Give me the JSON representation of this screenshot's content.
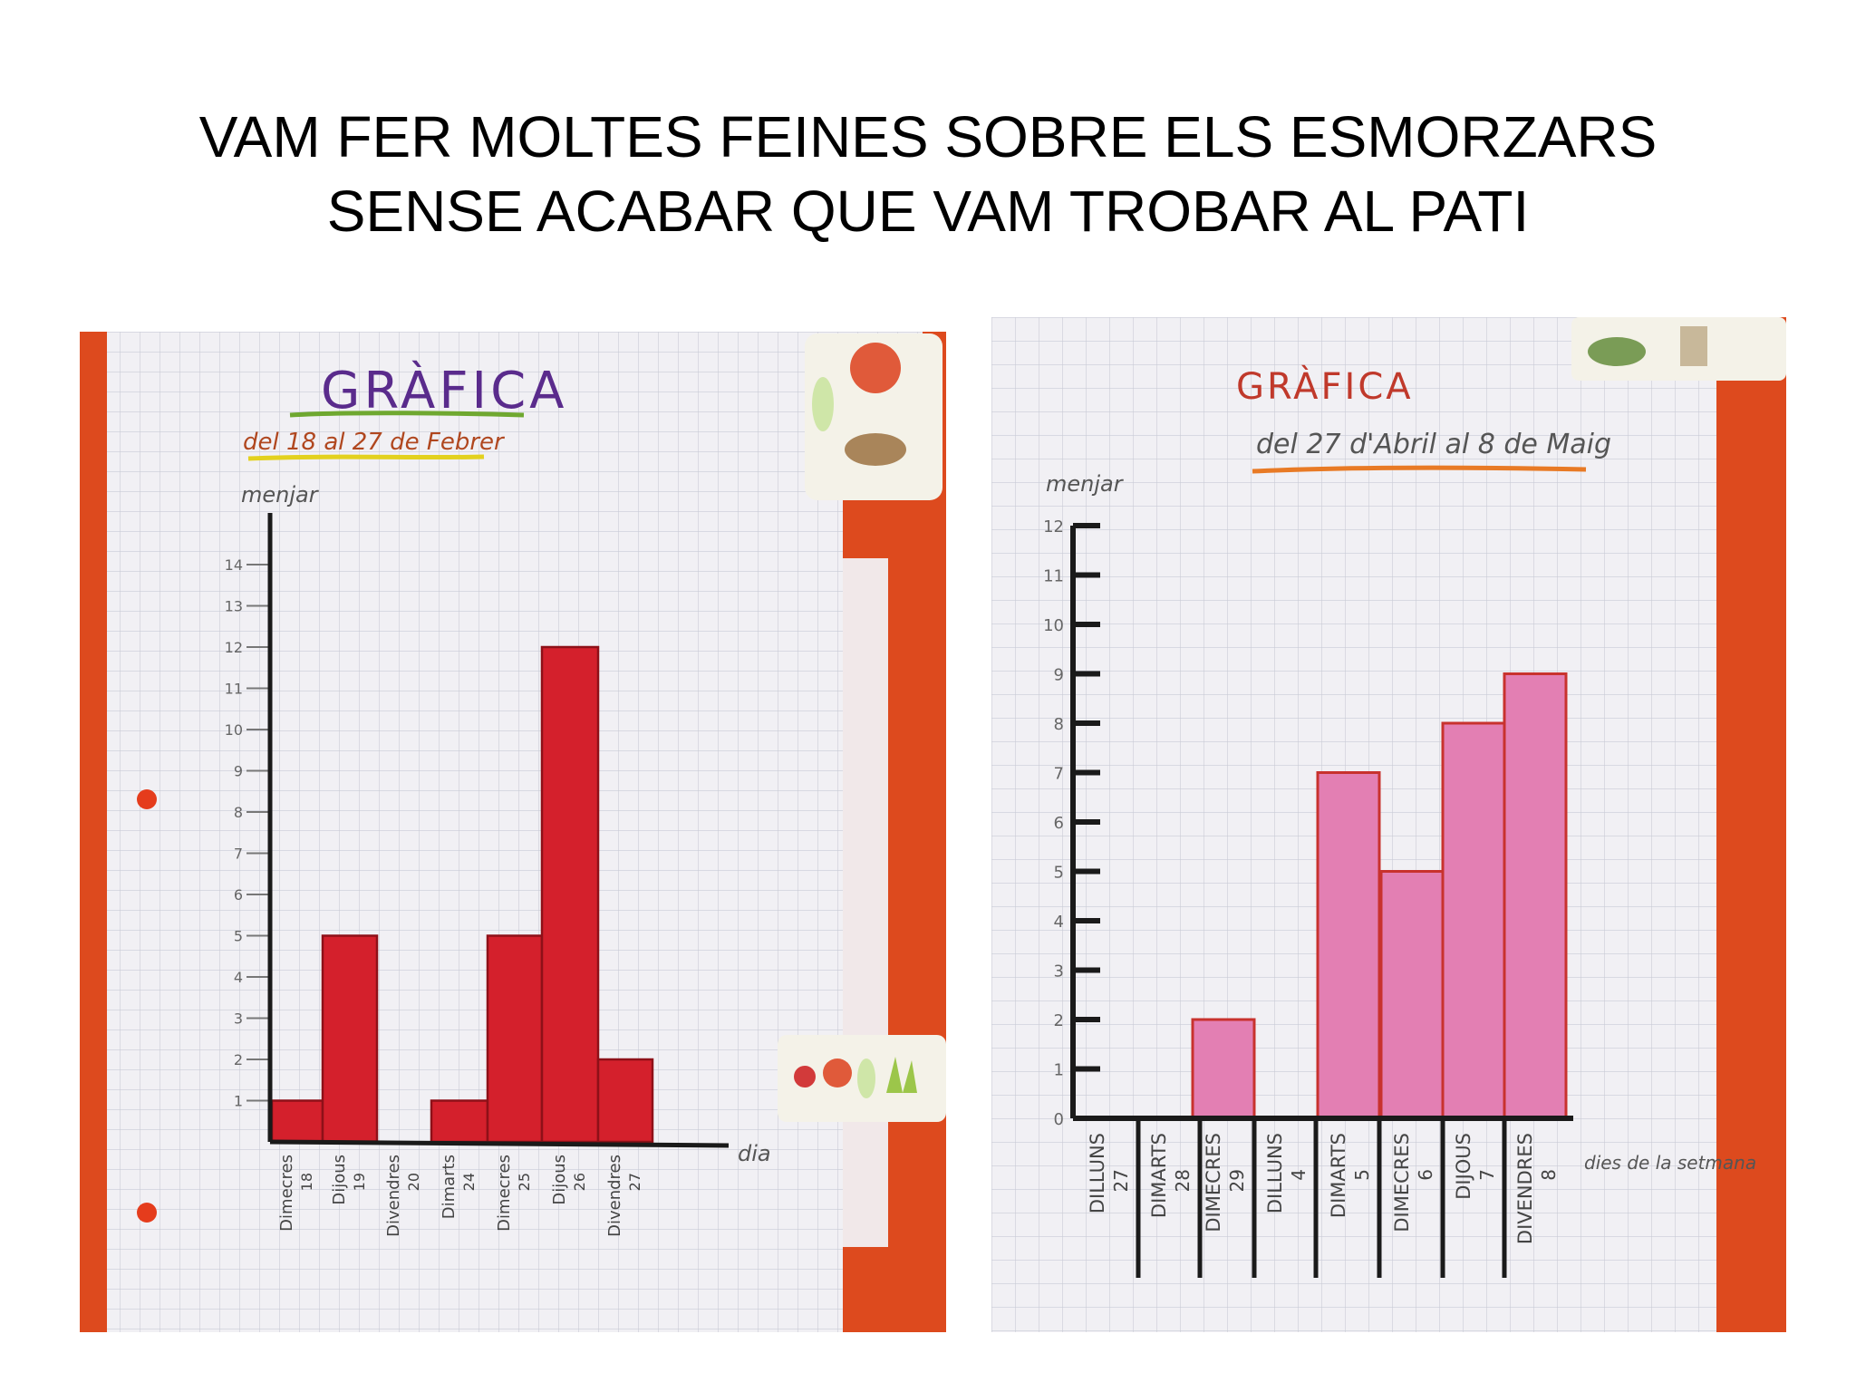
{
  "slide": {
    "title_line1": "VAM FER MOLTES FEINES SOBRE ELS ESMORZARS",
    "title_line2": "SENSE ACABAR QUE VAM TROBAR AL PATI"
  },
  "colors": {
    "paper": "#f1f0f4",
    "grid": "#c9cbd6",
    "wall": "#dd4a1e",
    "bar_left": "#d4202c",
    "bar_right": "#e37fb3",
    "bar_right_edge": "#c8322e",
    "axis": "#1a1a1a"
  },
  "chart_data": [
    {
      "type": "bar",
      "title": "GRÀFICA",
      "subtitle": "del 18 al 27 de Febrer",
      "ylabel": "menjar",
      "xlabel": "dia",
      "ylim": [
        0,
        14
      ],
      "y_ticks": [
        "1",
        "2",
        "3",
        "4",
        "5",
        "6",
        "7",
        "8",
        "9",
        "10",
        "11",
        "12",
        "13",
        "14"
      ],
      "categories": [
        {
          "day": "Dimecres",
          "date": "18"
        },
        {
          "day": "Dijous",
          "date": "19"
        },
        {
          "day": "Divendres",
          "date": "20"
        },
        {
          "day": "Dimarts",
          "date": "24"
        },
        {
          "day": "Dimecres",
          "date": "25"
        },
        {
          "day": "Dijous",
          "date": "26"
        },
        {
          "day": "Divendres",
          "date": "27"
        }
      ],
      "values": [
        1,
        5,
        0,
        1,
        5,
        12,
        2
      ]
    },
    {
      "type": "bar",
      "title": "GRÀFICA",
      "subtitle": "del 27 d'Abril al 8 de Maig",
      "ylabel": "menjar",
      "xlabel": "dies de la setmana",
      "ylim": [
        0,
        12
      ],
      "y_ticks": [
        "0",
        "1",
        "2",
        "3",
        "4",
        "5",
        "6",
        "7",
        "8",
        "9",
        "10",
        "11",
        "12"
      ],
      "categories": [
        {
          "day": "DILLUNS",
          "date": "27"
        },
        {
          "day": "DIMARTS",
          "date": "28"
        },
        {
          "day": "DIMECRES",
          "date": "29"
        },
        {
          "day": "DILLUNS",
          "date": "4"
        },
        {
          "day": "DIMARTS",
          "date": "5"
        },
        {
          "day": "DIMECRES",
          "date": "6"
        },
        {
          "day": "DIJOUS",
          "date": "7"
        },
        {
          "day": "DIVENDRES",
          "date": "8"
        }
      ],
      "values": [
        0,
        0,
        2,
        0,
        7,
        5,
        8,
        9
      ]
    }
  ]
}
